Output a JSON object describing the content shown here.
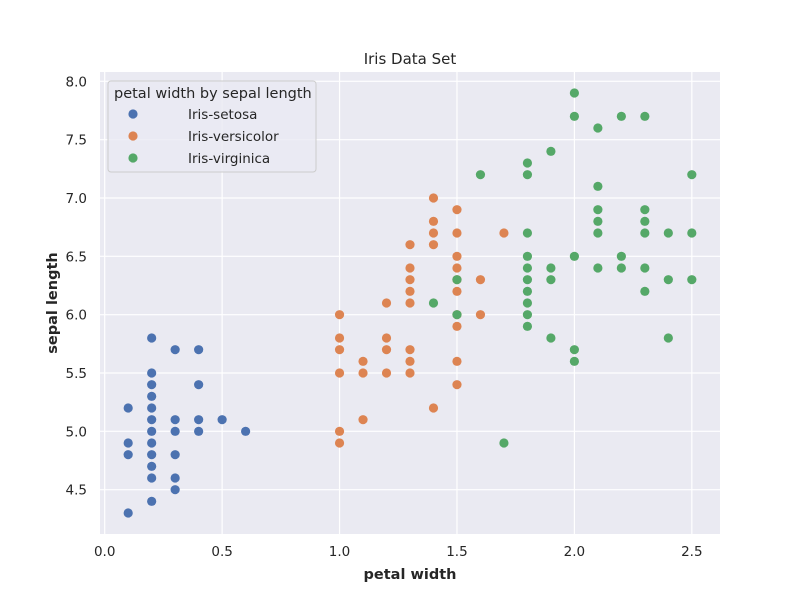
{
  "chart_data": {
    "type": "scatter",
    "title": "Iris Data Set",
    "xlabel": "petal width",
    "ylabel": "sepal length",
    "xlim": [
      -0.02,
      2.62
    ],
    "ylim": [
      4.12,
      8.08
    ],
    "xticks": [
      0.0,
      0.5,
      1.0,
      1.5,
      2.0,
      2.5
    ],
    "xtick_labels": [
      "0.0",
      "0.5",
      "1.0",
      "1.5",
      "2.0",
      "2.5"
    ],
    "yticks": [
      4.5,
      5.0,
      5.5,
      6.0,
      6.5,
      7.0,
      7.5,
      8.0
    ],
    "ytick_labels": [
      "4.5",
      "5.0",
      "5.5",
      "6.0",
      "6.5",
      "7.0",
      "7.5",
      "8.0"
    ],
    "grid": true,
    "legend": {
      "title": "petal width by sepal length",
      "placement": "upper-left"
    },
    "background": "#eaeaf2",
    "series": [
      {
        "name": "Iris-setosa",
        "color": "#4c72b0",
        "points": [
          [
            0.1,
            4.3
          ],
          [
            0.1,
            4.8
          ],
          [
            0.1,
            4.9
          ],
          [
            0.1,
            5.2
          ],
          [
            0.2,
            4.4
          ],
          [
            0.2,
            4.6
          ],
          [
            0.2,
            4.7
          ],
          [
            0.2,
            4.8
          ],
          [
            0.2,
            4.9
          ],
          [
            0.2,
            5.0
          ],
          [
            0.2,
            5.1
          ],
          [
            0.2,
            5.2
          ],
          [
            0.2,
            5.3
          ],
          [
            0.2,
            5.4
          ],
          [
            0.2,
            5.5
          ],
          [
            0.2,
            5.8
          ],
          [
            0.3,
            4.5
          ],
          [
            0.3,
            4.6
          ],
          [
            0.3,
            4.8
          ],
          [
            0.3,
            5.0
          ],
          [
            0.3,
            5.1
          ],
          [
            0.3,
            5.7
          ],
          [
            0.4,
            5.0
          ],
          [
            0.4,
            5.1
          ],
          [
            0.4,
            5.4
          ],
          [
            0.4,
            5.7
          ],
          [
            0.5,
            5.1
          ],
          [
            0.6,
            5.0
          ]
        ]
      },
      {
        "name": "Iris-versicolor",
        "color": "#dd8452",
        "points": [
          [
            1.0,
            4.9
          ],
          [
            1.0,
            5.0
          ],
          [
            1.0,
            5.5
          ],
          [
            1.0,
            5.7
          ],
          [
            1.0,
            5.8
          ],
          [
            1.0,
            6.0
          ],
          [
            1.1,
            5.1
          ],
          [
            1.1,
            5.5
          ],
          [
            1.1,
            5.6
          ],
          [
            1.2,
            5.5
          ],
          [
            1.2,
            5.7
          ],
          [
            1.2,
            5.8
          ],
          [
            1.2,
            6.1
          ],
          [
            1.3,
            5.5
          ],
          [
            1.3,
            5.6
          ],
          [
            1.3,
            5.7
          ],
          [
            1.3,
            6.1
          ],
          [
            1.3,
            6.2
          ],
          [
            1.3,
            6.3
          ],
          [
            1.3,
            6.4
          ],
          [
            1.3,
            6.6
          ],
          [
            1.4,
            5.2
          ],
          [
            1.4,
            6.6
          ],
          [
            1.4,
            6.7
          ],
          [
            1.4,
            6.8
          ],
          [
            1.4,
            7.0
          ],
          [
            1.5,
            5.4
          ],
          [
            1.5,
            5.6
          ],
          [
            1.5,
            5.9
          ],
          [
            1.5,
            6.0
          ],
          [
            1.5,
            6.2
          ],
          [
            1.5,
            6.3
          ],
          [
            1.5,
            6.4
          ],
          [
            1.5,
            6.5
          ],
          [
            1.5,
            6.7
          ],
          [
            1.5,
            6.9
          ],
          [
            1.6,
            6.0
          ],
          [
            1.6,
            6.3
          ],
          [
            1.7,
            6.7
          ]
        ]
      },
      {
        "name": "Iris-virginica",
        "color": "#55a868",
        "points": [
          [
            1.4,
            6.1
          ],
          [
            1.5,
            6.0
          ],
          [
            1.5,
            6.3
          ],
          [
            1.6,
            7.2
          ],
          [
            1.7,
            4.9
          ],
          [
            1.8,
            5.9
          ],
          [
            1.8,
            6.0
          ],
          [
            1.8,
            6.1
          ],
          [
            1.8,
            6.2
          ],
          [
            1.8,
            6.3
          ],
          [
            1.8,
            6.4
          ],
          [
            1.8,
            6.5
          ],
          [
            1.8,
            6.7
          ],
          [
            1.8,
            7.2
          ],
          [
            1.8,
            7.3
          ],
          [
            1.9,
            5.8
          ],
          [
            1.9,
            6.3
          ],
          [
            1.9,
            6.4
          ],
          [
            1.9,
            7.4
          ],
          [
            2.0,
            5.6
          ],
          [
            2.0,
            5.7
          ],
          [
            2.0,
            6.5
          ],
          [
            2.0,
            7.7
          ],
          [
            2.0,
            7.9
          ],
          [
            2.1,
            6.4
          ],
          [
            2.1,
            6.7
          ],
          [
            2.1,
            6.8
          ],
          [
            2.1,
            6.9
          ],
          [
            2.1,
            7.1
          ],
          [
            2.1,
            7.6
          ],
          [
            2.2,
            6.4
          ],
          [
            2.2,
            6.5
          ],
          [
            2.2,
            7.7
          ],
          [
            2.3,
            6.2
          ],
          [
            2.3,
            6.4
          ],
          [
            2.3,
            6.7
          ],
          [
            2.3,
            6.8
          ],
          [
            2.3,
            6.9
          ],
          [
            2.3,
            7.7
          ],
          [
            2.4,
            5.8
          ],
          [
            2.4,
            6.3
          ],
          [
            2.4,
            6.7
          ],
          [
            2.5,
            6.3
          ],
          [
            2.5,
            6.7
          ],
          [
            2.5,
            7.2
          ]
        ]
      }
    ]
  }
}
